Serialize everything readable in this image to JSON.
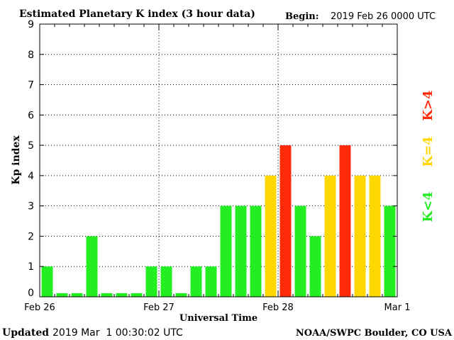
{
  "header": {
    "title": "Estimated Planetary K index (3 hour data)",
    "begin_label": "Begin:",
    "begin_value": "2019 Feb 26 0000 UTC"
  },
  "footer": {
    "updated_label": "Updated",
    "updated_value": "2019 Mar  1 00:30:02 UTC",
    "credit": "NOAA/SWPC Boulder, CO USA"
  },
  "legend": {
    "high": "K>4",
    "equal": "K=4",
    "low": "K<4"
  },
  "colors": {
    "low": "#22ee22",
    "equal": "#ffd700",
    "high": "#ff2a0a",
    "grid": "#000000"
  },
  "chart_data": {
    "type": "bar",
    "xlabel": "Universal Time",
    "ylabel": "Kp index",
    "ylim": [
      0,
      9
    ],
    "yticks": [
      0,
      1,
      2,
      3,
      4,
      5,
      6,
      7,
      8,
      9
    ],
    "x_ticks": [
      "Feb 26",
      "Feb 27",
      "Feb 28",
      "Mar 1"
    ],
    "interval_hours": 3,
    "values": [
      1,
      0,
      0,
      2,
      0,
      0,
      0,
      1,
      1,
      0,
      1,
      1,
      3,
      3,
      3,
      4,
      5,
      3,
      2,
      4,
      5,
      4,
      4,
      3
    ],
    "grid": "dotted"
  }
}
